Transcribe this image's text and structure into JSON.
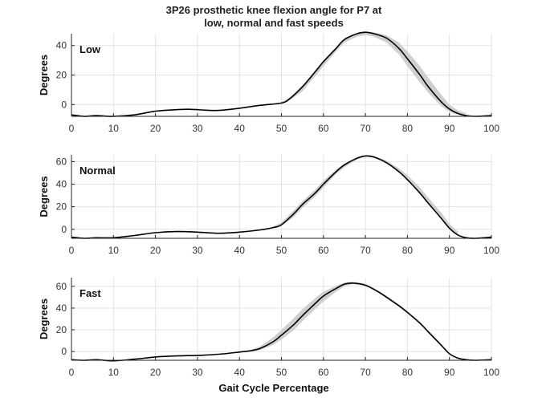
{
  "figure": {
    "title_line1": "3P26 prosthetic knee flexion angle for P7 at",
    "title_line2": "low, normal and fast speeds",
    "xlabel": "Gait Cycle Percentage"
  },
  "chart_data": [
    {
      "type": "line",
      "panel_label": "Low",
      "ylabel": "Degrees",
      "xlim": [
        0,
        100
      ],
      "ylim": [
        -8,
        48
      ],
      "xticks": [
        0,
        10,
        20,
        30,
        40,
        50,
        60,
        70,
        80,
        90,
        100
      ],
      "yticks": [
        0,
        20,
        40
      ],
      "grid": true,
      "series": [
        {
          "role": "mean",
          "color": "#000000",
          "x": [
            0,
            3,
            6,
            10,
            15,
            20,
            25,
            28,
            32,
            35,
            40,
            45,
            50,
            52,
            55,
            58,
            60,
            63,
            65,
            68,
            70,
            72,
            75,
            78,
            80,
            83,
            85,
            88,
            90,
            92,
            94,
            96,
            100
          ],
          "y": [
            -7,
            -8,
            -7.5,
            -8,
            -7,
            -4.5,
            -3.5,
            -3.2,
            -3.8,
            -4,
            -2.5,
            -0.5,
            1,
            4,
            12,
            22,
            29,
            38,
            44,
            48,
            49,
            48,
            45,
            38,
            31,
            20,
            12,
            2,
            -3,
            -6,
            -7.5,
            -8,
            -7.5
          ]
        },
        {
          "role": "band",
          "color": "#cfcfcf",
          "x": [
            50,
            52,
            55,
            58,
            60,
            63,
            65,
            68,
            70,
            72,
            75,
            78,
            80,
            83,
            85,
            88,
            90,
            92,
            94
          ],
          "lower": [
            0,
            3,
            9,
            19,
            26,
            36,
            42,
            46,
            47,
            46,
            42,
            34,
            26,
            15,
            8,
            -1,
            -5,
            -7,
            -8
          ],
          "upper": [
            1.5,
            5,
            13,
            23,
            30,
            39,
            45,
            48.5,
            49.5,
            49,
            47,
            42,
            36,
            26,
            18,
            7,
            0,
            -4,
            -6
          ]
        }
      ]
    },
    {
      "type": "line",
      "panel_label": "Normal",
      "ylabel": "Degrees",
      "xlim": [
        0,
        100
      ],
      "ylim": [
        -8,
        66
      ],
      "xticks": [
        0,
        10,
        20,
        30,
        40,
        50,
        60,
        70,
        80,
        90,
        100
      ],
      "yticks": [
        0,
        20,
        40,
        60
      ],
      "grid": true,
      "series": [
        {
          "role": "mean",
          "color": "#000000",
          "x": [
            0,
            3,
            6,
            10,
            15,
            20,
            25,
            30,
            35,
            40,
            45,
            48,
            50,
            53,
            55,
            58,
            60,
            63,
            65,
            68,
            70,
            72,
            75,
            78,
            80,
            83,
            85,
            88,
            90,
            92,
            94,
            96,
            100
          ],
          "y": [
            -7,
            -8,
            -7.5,
            -7.5,
            -5.5,
            -3,
            -2,
            -2.5,
            -3.5,
            -2.5,
            -0.5,
            1.5,
            4,
            14,
            22,
            32,
            40,
            51,
            57,
            63,
            65,
            64,
            59,
            51,
            44,
            32,
            23,
            10,
            1,
            -5,
            -7.5,
            -8,
            -7
          ]
        },
        {
          "role": "band",
          "color": "#cfcfcf",
          "x": [
            48,
            50,
            53,
            55,
            58,
            60,
            63,
            65,
            68,
            70,
            72,
            75,
            78,
            80,
            83,
            85,
            88,
            90,
            92
          ],
          "lower": [
            0.5,
            3,
            11,
            19,
            29,
            37,
            49,
            55,
            62,
            64.5,
            63.5,
            59,
            51,
            44,
            32,
            23,
            10,
            1,
            -5
          ],
          "upper": [
            2.5,
            6,
            17,
            25,
            35,
            43,
            53,
            58.5,
            64,
            66,
            65.5,
            61,
            54,
            48,
            37,
            28,
            15,
            5,
            -2
          ]
        }
      ]
    },
    {
      "type": "line",
      "panel_label": "Fast",
      "ylabel": "Degrees",
      "xlim": [
        0,
        100
      ],
      "ylim": [
        -8,
        68
      ],
      "xticks": [
        0,
        10,
        20,
        30,
        40,
        50,
        60,
        70,
        80,
        90,
        100
      ],
      "yticks": [
        0,
        20,
        40,
        60
      ],
      "grid": true,
      "series": [
        {
          "role": "mean",
          "color": "#000000",
          "x": [
            0,
            3,
            6,
            10,
            15,
            20,
            25,
            30,
            35,
            40,
            43,
            45,
            48,
            50,
            53,
            55,
            58,
            60,
            63,
            65,
            67,
            70,
            73,
            75,
            78,
            80,
            83,
            85,
            88,
            90,
            92,
            94,
            96,
            100
          ],
          "y": [
            -7.5,
            -8,
            -7.5,
            -8.5,
            -7,
            -5,
            -4,
            -3.5,
            -2.5,
            -0.5,
            1,
            3,
            9,
            15,
            25,
            33,
            44,
            51,
            58,
            62,
            63,
            61,
            55,
            50,
            42,
            36,
            26,
            18,
            6,
            -2,
            -6,
            -7.5,
            -8,
            -7.5
          ]
        },
        {
          "role": "band",
          "color": "#cfcfcf",
          "x": [
            43,
            45,
            48,
            50,
            53,
            55,
            58,
            60,
            63,
            65,
            67,
            70,
            73,
            75,
            78,
            80,
            83,
            85,
            88,
            90
          ],
          "lower": [
            0,
            1.5,
            6,
            11,
            20,
            28,
            39,
            46,
            55,
            60,
            62,
            60.5,
            55,
            50,
            42,
            36,
            26,
            18,
            6,
            -2
          ],
          "upper": [
            2,
            5,
            13,
            20,
            31,
            39,
            49,
            55,
            60.5,
            63.5,
            64,
            62.5,
            56.5,
            51.5,
            43.5,
            37.5,
            27.5,
            19.5,
            7.5,
            -1
          ]
        }
      ]
    }
  ]
}
